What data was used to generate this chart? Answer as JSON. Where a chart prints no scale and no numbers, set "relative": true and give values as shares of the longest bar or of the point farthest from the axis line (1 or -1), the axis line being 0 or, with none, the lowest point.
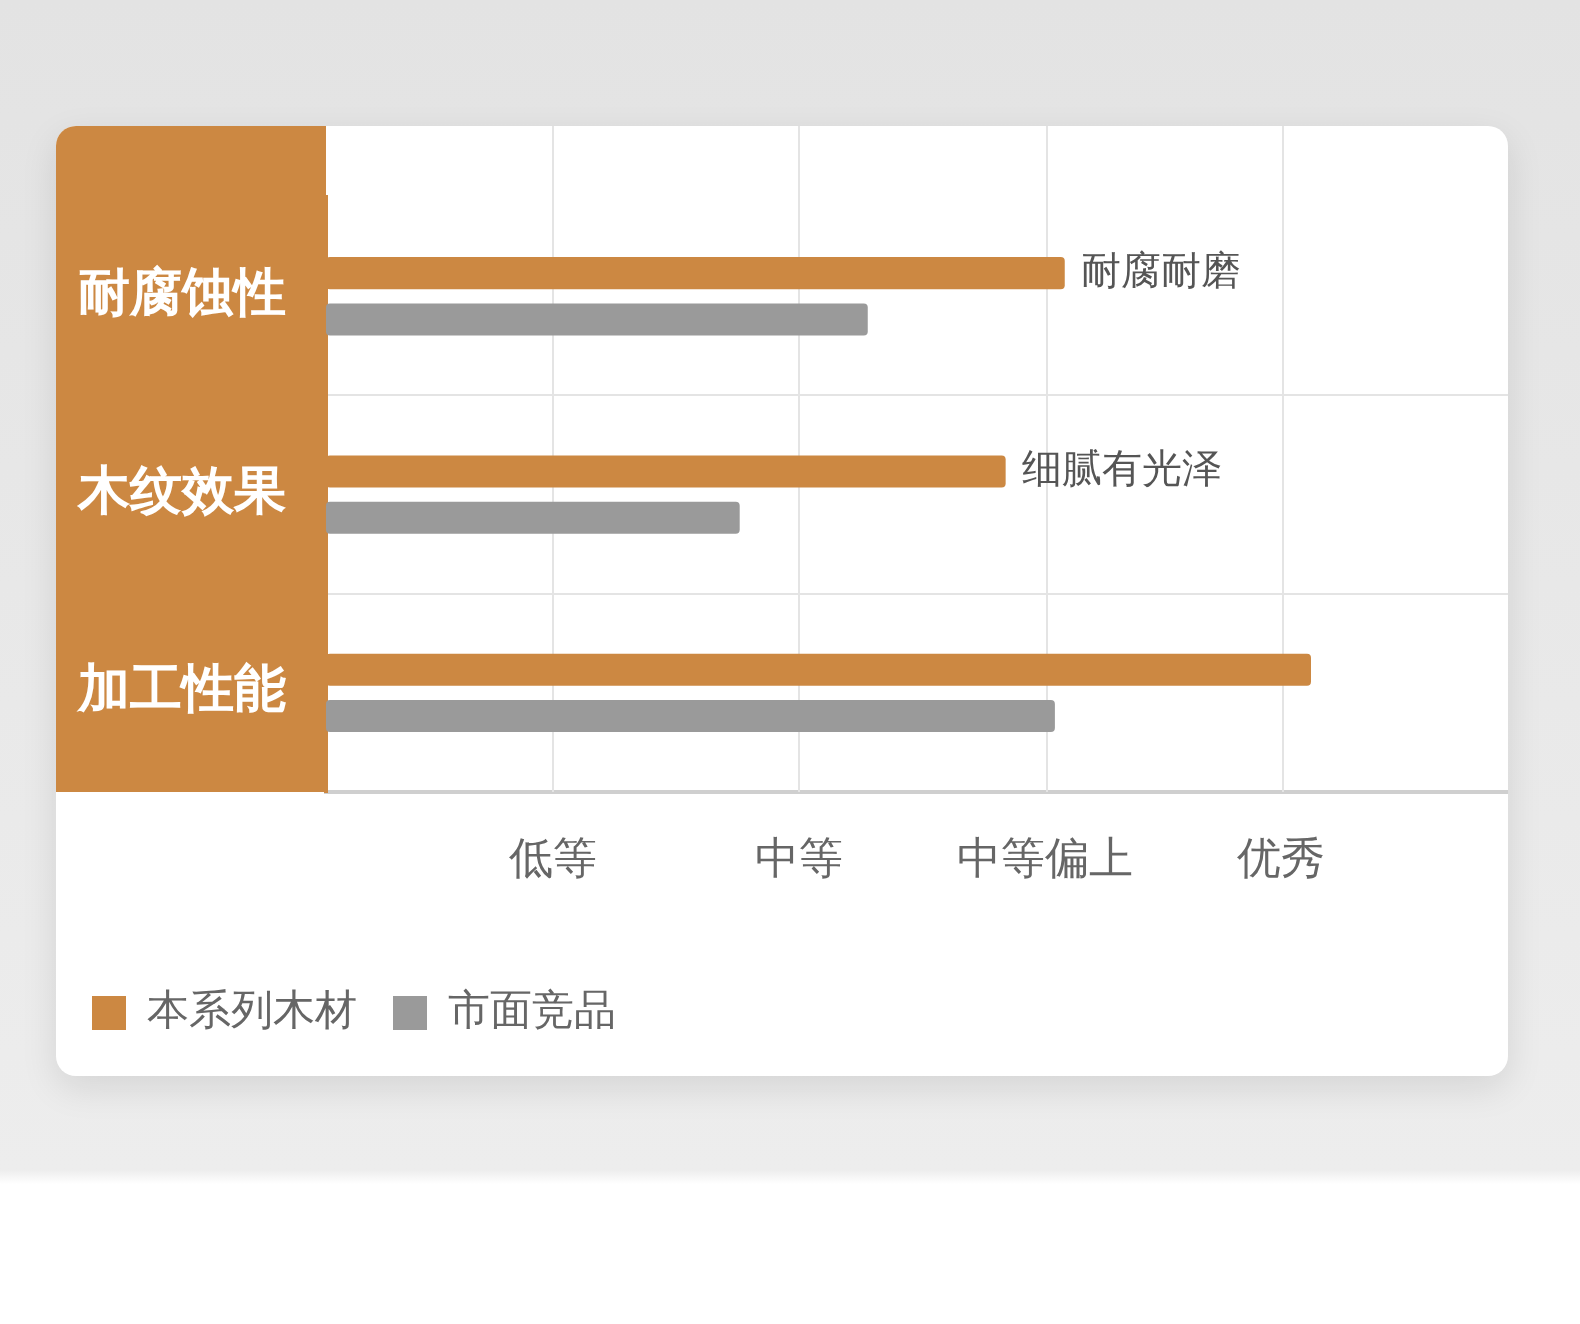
{
  "chart_data": {
    "type": "bar",
    "orientation": "horizontal",
    "relative": true,
    "categories": [
      "耐腐蚀性",
      "木纹效果",
      "加工性能"
    ],
    "series": [
      {
        "name": "本系列木材",
        "color": "#cc8842",
        "values": [
          0.75,
          0.69,
          1
        ]
      },
      {
        "name": "市面竞品",
        "color": "#9a9a9a",
        "values": [
          0.55,
          0.42,
          0.74
        ]
      }
    ],
    "ref_lines": [
      {
        "axis": "x",
        "value": 0.23,
        "label": "低等",
        "color": "#e4e4e4"
      },
      {
        "axis": "x",
        "value": 0.48,
        "label": "中等",
        "color": "#e4e4e4"
      },
      {
        "axis": "x",
        "value": 0.73,
        "label": "中等偏上",
        "color": "#e4e4e4"
      },
      {
        "axis": "x",
        "value": 0.97,
        "label": "优秀",
        "color": "#e4e4e4"
      }
    ],
    "grid": "y",
    "legend": "bottom left",
    "annotations": [
      {
        "text": "耐腐耐磨",
        "x": 0.75,
        "y": "耐腐蚀性"
      },
      {
        "text": "细腻有光泽",
        "x": 0.69,
        "y": "木纹效果"
      }
    ]
  }
}
